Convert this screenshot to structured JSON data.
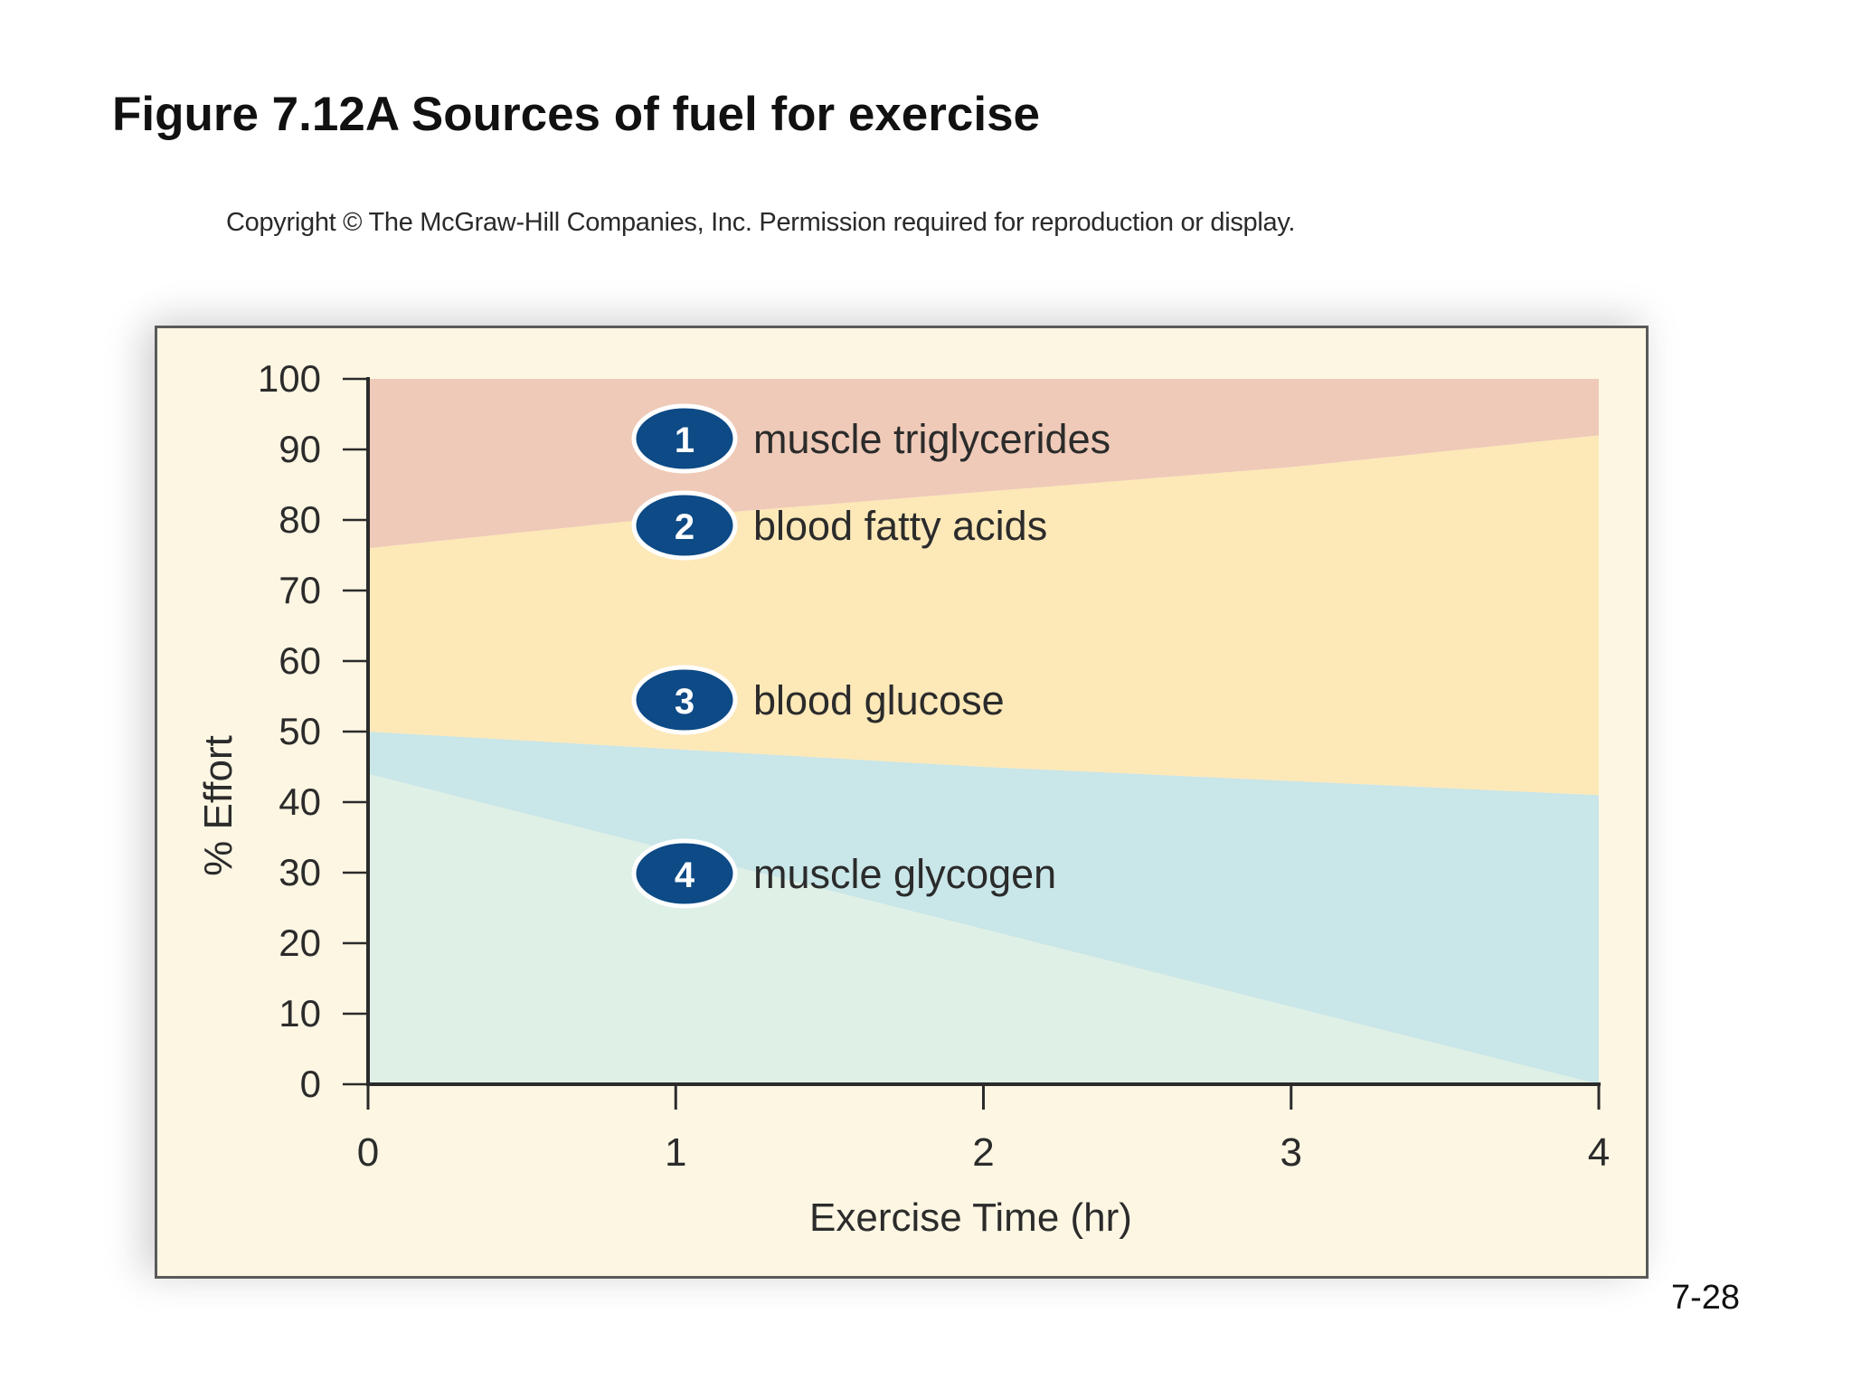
{
  "slide": {
    "title": "Figure 7.12A Sources of fuel for exercise",
    "copyright": "Copyright © The McGraw-Hill Companies, Inc. Permission required for reproduction or display.",
    "page_number": "7-28"
  },
  "chart_data": {
    "type": "area",
    "stacked": true,
    "title": "",
    "xlabel": "Exercise Time (hr)",
    "ylabel": "% Effort",
    "x": [
      0,
      1,
      2,
      3,
      4
    ],
    "xlim": [
      0,
      4
    ],
    "ylim": [
      0,
      100
    ],
    "xticks": [
      0,
      1,
      2,
      3,
      4
    ],
    "yticks": [
      0,
      10,
      20,
      30,
      40,
      50,
      60,
      70,
      80,
      90,
      100
    ],
    "grid": false,
    "series": [
      {
        "name": "muscle glycogen",
        "number": "4",
        "color": "#dff0e6",
        "values": [
          44,
          33,
          22,
          11,
          0
        ]
      },
      {
        "name": "blood glucose",
        "number": "3",
        "color": "#c9e6e8",
        "values": [
          6,
          14.5,
          23,
          32,
          41
        ]
      },
      {
        "name": "blood fatty acids",
        "number": "2",
        "color": "#fde8b8",
        "values": [
          26,
          33,
          39,
          44.5,
          51
        ]
      },
      {
        "name": "muscle triglycerides",
        "number": "1",
        "color": "#efcab8",
        "values": [
          24,
          19.5,
          16,
          12.5,
          8
        ]
      }
    ],
    "badge_color": "#0d4a86",
    "legend_placement": "inline-left"
  }
}
